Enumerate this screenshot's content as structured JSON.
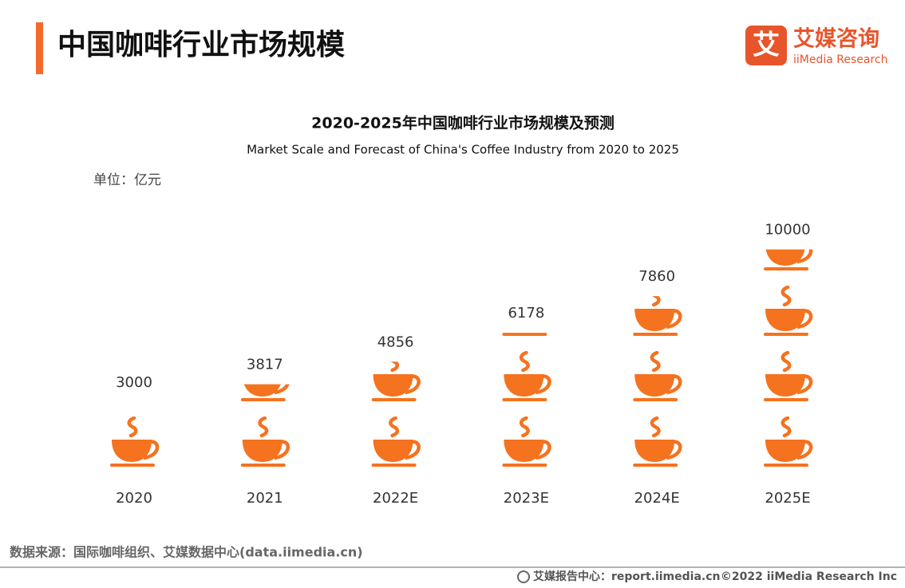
{
  "header": {
    "title": "中国咖啡行业市场规模"
  },
  "logo": {
    "mark": "艾",
    "name": "艾媒咨询",
    "sub": "iiMedia Research"
  },
  "chart_data": {
    "type": "pictogram",
    "title": "2020-2025年中国咖啡行业市场规模及预测",
    "subtitle": "Market Scale and Forecast of China's Coffee Industry from 2020 to 2025",
    "unit_label": "单位：亿元",
    "categories": [
      "2020",
      "2021",
      "2022E",
      "2023E",
      "2024E",
      "2025E"
    ],
    "values": [
      3000,
      3817,
      4856,
      6178,
      7860,
      10000
    ],
    "color": "#f5721f",
    "ylim": [
      0,
      12000
    ]
  },
  "source": "数据来源：国际咖啡组织、艾媒数据中心(data.iimedia.cn)",
  "footer": {
    "center": "艾媒报告中心：report.iimedia.cn",
    "copyright": "©2022  iiMedia Research  Inc"
  }
}
